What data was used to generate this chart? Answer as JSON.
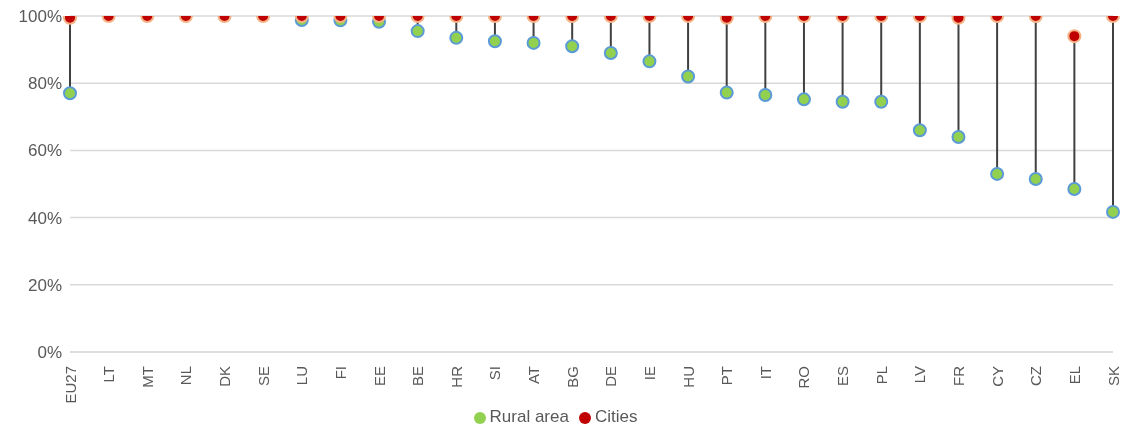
{
  "chart_data": {
    "type": "scatter",
    "categories": [
      "EU27",
      "LT",
      "MT",
      "NL",
      "DK",
      "SE",
      "LU",
      "FI",
      "EE",
      "BE",
      "HR",
      "SI",
      "AT",
      "BG",
      "DE",
      "IE",
      "HU",
      "PT",
      "IT",
      "RO",
      "ES",
      "PL",
      "LV",
      "FR",
      "CY",
      "CZ",
      "EL",
      "SK"
    ],
    "series": [
      {
        "name": "Rural area",
        "color": "#92d050",
        "values": [
          77,
          null,
          null,
          null,
          null,
          null,
          98.8,
          98.7,
          98.3,
          95.5,
          93.5,
          92.5,
          92,
          91,
          89,
          86.5,
          82,
          77.2,
          76.5,
          75.2,
          74.5,
          74.5,
          66,
          64,
          53,
          51.5,
          48.5,
          41.7
        ]
      },
      {
        "name": "Cities",
        "color": "#c00000",
        "values": [
          99.5,
          100,
          100,
          100,
          100,
          100,
          100,
          100,
          100,
          100,
          100,
          100,
          100,
          100,
          100,
          100,
          100,
          99.5,
          100,
          100,
          100,
          100,
          100,
          99.5,
          100,
          100,
          94,
          100
        ]
      }
    ],
    "ylim": [
      0,
      100
    ],
    "yticks": [
      {
        "value": 0,
        "label": "0%"
      },
      {
        "value": 20,
        "label": "20%"
      },
      {
        "value": 40,
        "label": "40%"
      },
      {
        "value": 60,
        "label": "60%"
      },
      {
        "value": 80,
        "label": "80%"
      },
      {
        "value": 100,
        "label": "100%"
      }
    ],
    "grid": "y",
    "legend": "bottom",
    "marker": "circle"
  }
}
